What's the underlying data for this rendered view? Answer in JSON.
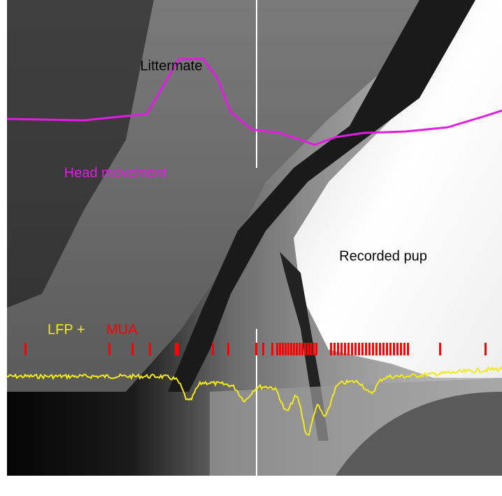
{
  "labels": {
    "littermate": "Littermate",
    "head_movement": "Head movement",
    "recorded_pup": "Recorded pup",
    "lfp": "LFP +",
    "mua": "MUA"
  }
}
